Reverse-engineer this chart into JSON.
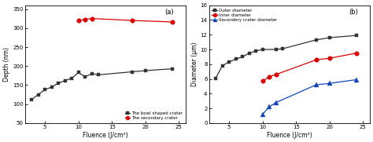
{
  "panel_a": {
    "bowl_x": [
      3,
      4,
      5,
      6,
      7,
      8,
      9,
      10,
      11,
      12,
      13,
      18,
      20,
      24
    ],
    "bowl_y": [
      112,
      125,
      138,
      145,
      155,
      162,
      168,
      183,
      172,
      180,
      177,
      185,
      188,
      193
    ],
    "secondary_x": [
      10,
      11,
      12,
      18,
      24
    ],
    "secondary_y": [
      320,
      323,
      325,
      320,
      316
    ],
    "xlabel": "Fluence (J/cm²)",
    "ylabel": "Depth (nm)",
    "ylim": [
      50,
      360
    ],
    "xlim": [
      2,
      26
    ],
    "yticks": [
      50,
      100,
      150,
      200,
      250,
      300,
      350
    ],
    "xticks": [
      5,
      10,
      15,
      20,
      25
    ],
    "legend1": "The bowl shaped crater",
    "legend2": "The secondary crater",
    "label": "(a)"
  },
  "panel_b": {
    "outer_x": [
      3,
      4,
      5,
      6,
      7,
      8,
      9,
      10,
      12,
      13,
      18,
      20,
      24
    ],
    "outer_y": [
      6.1,
      7.8,
      8.3,
      8.7,
      9.0,
      9.5,
      9.8,
      10.0,
      10.0,
      10.1,
      11.3,
      11.6,
      11.9
    ],
    "inner_x": [
      10,
      11,
      12,
      18,
      20,
      24
    ],
    "inner_y": [
      5.7,
      6.3,
      6.6,
      8.6,
      8.8,
      9.5
    ],
    "secondary_x": [
      10,
      11,
      12,
      18,
      20,
      24
    ],
    "secondary_y": [
      1.2,
      2.2,
      2.8,
      5.2,
      5.4,
      5.9
    ],
    "xlabel": "Fluence (J/cm²)",
    "ylabel": "Diameter (μm)",
    "ylim": [
      0,
      16
    ],
    "xlim": [
      2,
      26
    ],
    "yticks": [
      0,
      2,
      4,
      6,
      8,
      10,
      12,
      14,
      16
    ],
    "xticks": [
      5,
      10,
      15,
      20,
      25
    ],
    "legend1": "Outer diameter",
    "legend2": "Inner diameter",
    "legend3": "Secondery crater diameter",
    "label": "(b)"
  },
  "bowl_color": "#333333",
  "secondary_color_a": "#dd0000",
  "outer_color": "#333333",
  "inner_color": "#dd0000",
  "secondary_color_b": "#1144bb",
  "linewidth": 0.9,
  "markersize": 3.2,
  "fontsize_label": 5.5,
  "fontsize_tick": 5.0,
  "fontsize_legend": 4.0,
  "fontsize_panel": 6.0
}
